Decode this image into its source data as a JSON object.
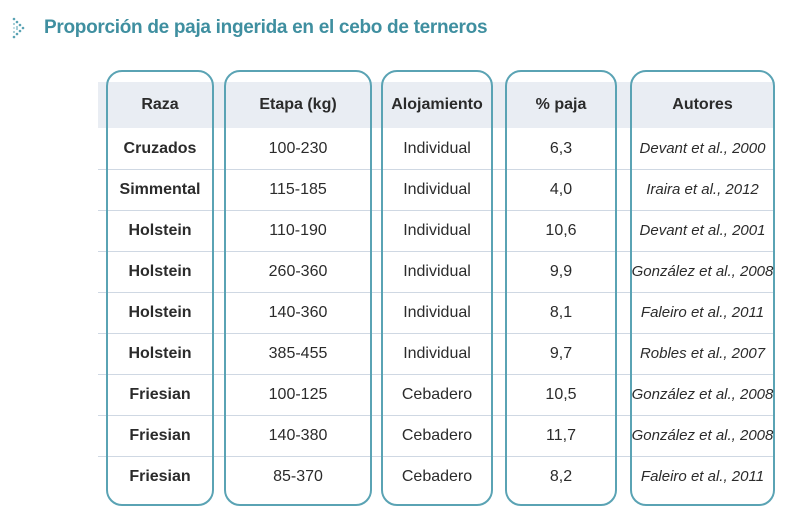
{
  "title": "Proporción de paja ingerida en el cebo de terneros",
  "accent_color": "#3f8fa0",
  "border_color": "#5aa3b4",
  "icon": "dotted-chevron-right-icon",
  "table": {
    "headers": [
      "Raza",
      "Etapa (kg)",
      "Alojamiento",
      "% paja",
      "Autores"
    ],
    "rows": [
      [
        "Cruzados",
        "100-230",
        "Individual",
        "6,3",
        "Devant et al., 2000"
      ],
      [
        "Simmental",
        "115-185",
        "Individual",
        "4,0",
        "Iraira et al., 2012"
      ],
      [
        "Holstein",
        "110-190",
        "Individual",
        "10,6",
        "Devant et al., 2001"
      ],
      [
        "Holstein",
        "260-360",
        "Individual",
        "9,9",
        "González et al., 2008"
      ],
      [
        "Holstein",
        "140-360",
        "Individual",
        "8,1",
        "Faleiro et al., 2011"
      ],
      [
        "Holstein",
        "385-455",
        "Individual",
        "9,7",
        "Robles et al., 2007"
      ],
      [
        "Friesian",
        "100-125",
        "Cebadero",
        "10,5",
        "González et al., 2008"
      ],
      [
        "Friesian",
        "140-380",
        "Cebadero",
        "11,7",
        "González et al., 2008"
      ],
      [
        "Friesian",
        "85-370",
        "Cebadero",
        "8,2",
        "Faleiro et al., 2011"
      ]
    ]
  }
}
